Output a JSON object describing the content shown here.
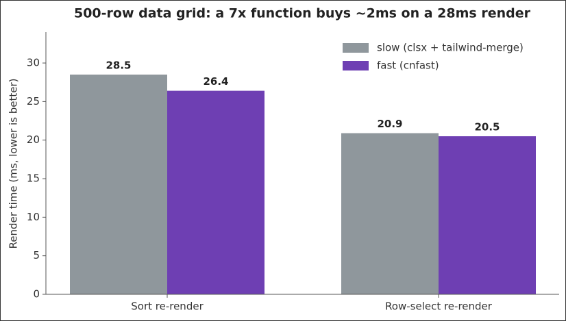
{
  "chart_data": {
    "type": "bar",
    "title": "500-row data grid: a 7x function buys ~2ms on a 28ms render",
    "y_label": "Render time (ms, lower is better)",
    "categories": [
      "Sort re-render",
      "Row-select re-render"
    ],
    "series": [
      {
        "name": "slow (clsx + tailwind-merge)",
        "color": "#8f979c",
        "values": [
          28.5,
          20.9
        ]
      },
      {
        "name": "fast (cnfast)",
        "color": "#6e3fb3",
        "values": [
          26.4,
          20.5
        ]
      }
    ],
    "ylim": [
      0,
      34
    ],
    "yticks": [
      0,
      5,
      10,
      15,
      20,
      25,
      30
    ],
    "legend": "upper right"
  }
}
